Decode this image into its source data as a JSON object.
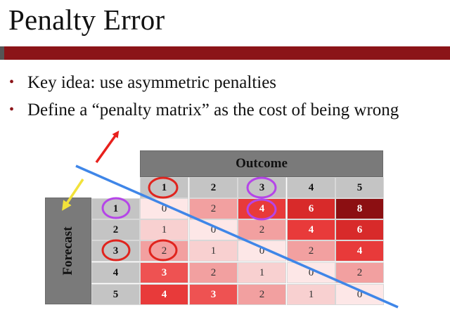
{
  "slide": {
    "title": "Penalty Error",
    "bullets": [
      "Key idea: use asymmetric penalties",
      "Define a “penalty matrix” as the cost of being wrong"
    ],
    "bullet_marker": "•"
  },
  "matrix": {
    "outcome_label": "Outcome",
    "forecast_label": "Forecast",
    "columns": [
      "1",
      "2",
      "3",
      "4",
      "5"
    ],
    "rows": [
      {
        "label": "1",
        "values": [
          "0",
          "2",
          "4",
          "6",
          "8"
        ]
      },
      {
        "label": "2",
        "values": [
          "1",
          "0",
          "2",
          "4",
          "6"
        ]
      },
      {
        "label": "3",
        "values": [
          "2",
          "1",
          "0",
          "2",
          "4"
        ]
      },
      {
        "label": "4",
        "values": [
          "3",
          "2",
          "1",
          "0",
          "2"
        ]
      },
      {
        "label": "5",
        "values": [
          "4",
          "3",
          "2",
          "1",
          "0"
        ]
      }
    ]
  },
  "colors": {
    "title_bar": "#8b1418",
    "header_gray": "#7a7a7a",
    "label_gray": "#c4c4c4",
    "red_arrow": "#e8201c",
    "yellow_arrow": "#f2e23a",
    "blue_line": "#3f86e8",
    "red_circle": "#e0241e",
    "purple_circle": "#b545e8"
  },
  "annotations": {
    "red_circles": [
      "outcome-col-1",
      "forecast-row-3",
      "cell-3-1"
    ],
    "purple_circles": [
      "outcome-col-3",
      "forecast-row-1",
      "cell-1-3"
    ],
    "arrows": [
      "red-arrow-up-right",
      "yellow-arrow-down-left"
    ],
    "diagonal_line": "blue"
  }
}
